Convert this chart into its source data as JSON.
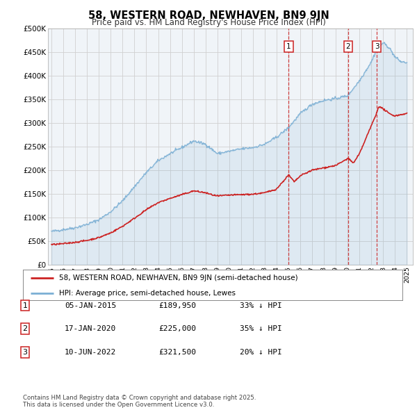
{
  "title": "58, WESTERN ROAD, NEWHAVEN, BN9 9JN",
  "subtitle": "Price paid vs. HM Land Registry's House Price Index (HPI)",
  "hpi_color": "#7bafd4",
  "price_color": "#cc2222",
  "vline_color": "#cc2222",
  "bg_color": "#f0f4f8",
  "ylim": [
    0,
    500000
  ],
  "ytick_values": [
    0,
    50000,
    100000,
    150000,
    200000,
    250000,
    300000,
    350000,
    400000,
    450000,
    500000
  ],
  "ytick_labels": [
    "£0",
    "£50K",
    "£100K",
    "£150K",
    "£200K",
    "£250K",
    "£300K",
    "£350K",
    "£400K",
    "£450K",
    "£500K"
  ],
  "xlim_start": 1995,
  "xlim_end": 2025,
  "sales": [
    {
      "num": 1,
      "date": "05-JAN-2015",
      "price": 189950,
      "pct": "33%",
      "year": 2015.02
    },
    {
      "num": 2,
      "date": "17-JAN-2020",
      "price": 225000,
      "pct": "35%",
      "year": 2020.04
    },
    {
      "num": 3,
      "date": "10-JUN-2022",
      "price": 321500,
      "pct": "20%",
      "year": 2022.45
    }
  ],
  "legend_line1": "58, WESTERN ROAD, NEWHAVEN, BN9 9JN (semi-detached house)",
  "legend_line2": "HPI: Average price, semi-detached house, Lewes",
  "footnote": "Contains HM Land Registry data © Crown copyright and database right 2025.\nThis data is licensed under the Open Government Licence v3.0.",
  "table_rows": [
    [
      "1",
      "05-JAN-2015",
      "£189,950",
      "33% ↓ HPI"
    ],
    [
      "2",
      "17-JAN-2020",
      "£225,000",
      "35% ↓ HPI"
    ],
    [
      "3",
      "10-JUN-2022",
      "£321,500",
      "20% ↓ HPI"
    ]
  ]
}
